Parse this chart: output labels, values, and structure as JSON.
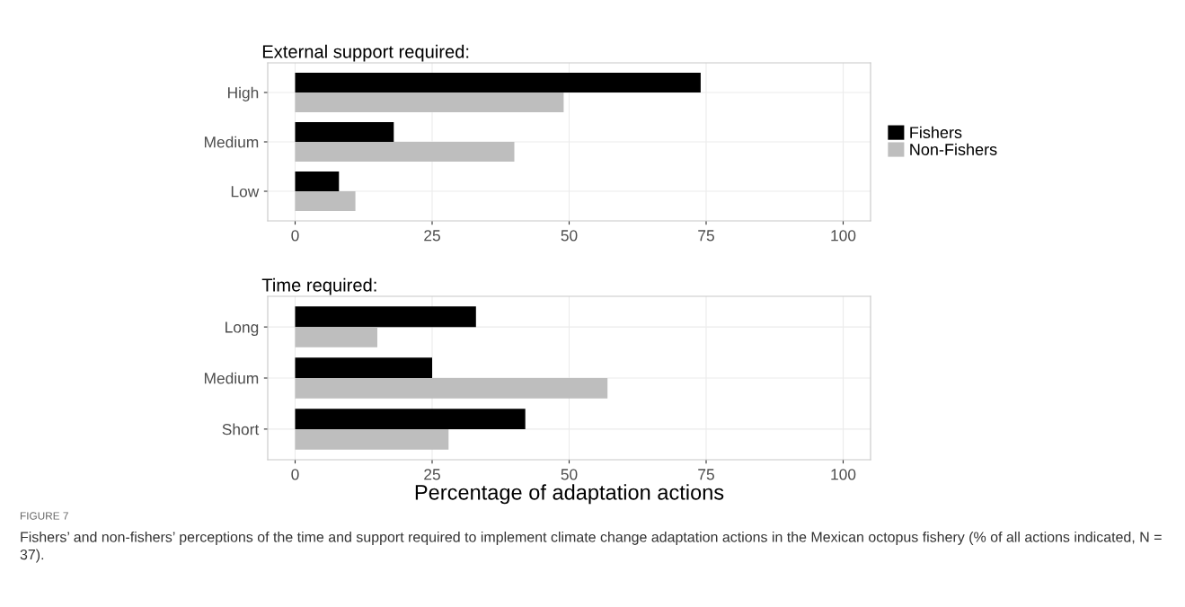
{
  "chart_data": [
    {
      "type": "bar",
      "orientation": "horizontal",
      "title": "External support required:",
      "categories": [
        "High",
        "Medium",
        "Low"
      ],
      "series": [
        {
          "name": "Fishers",
          "color": "#000000",
          "values": [
            74,
            18,
            8
          ]
        },
        {
          "name": "Non-Fishers",
          "color": "#bebebe",
          "values": [
            49,
            40,
            11
          ]
        }
      ],
      "xlim": [
        -5,
        105
      ],
      "xticks": [
        0,
        25,
        50,
        75,
        100
      ],
      "grid": true,
      "legend": "right"
    },
    {
      "type": "bar",
      "orientation": "horizontal",
      "title": "Time required:",
      "xlabel": "Percentage of adaptation actions",
      "categories": [
        "Long",
        "Medium",
        "Short"
      ],
      "series": [
        {
          "color": "#000000",
          "values": [
            33,
            25,
            42
          ]
        },
        {
          "color": "#bebebe",
          "values": [
            15,
            57,
            28
          ]
        }
      ],
      "xlim": [
        -5,
        105
      ],
      "xticks": [
        0,
        25,
        50,
        75,
        100
      ],
      "grid": true,
      "annotations": [
        "FIGURE 7",
        "Fishers’ and non-fishers’ perceptions of the time and support required to implement climate change adaptation actions in the Mexican octopus fishery (% of all actions indicated, N = 37)."
      ]
    }
  ]
}
